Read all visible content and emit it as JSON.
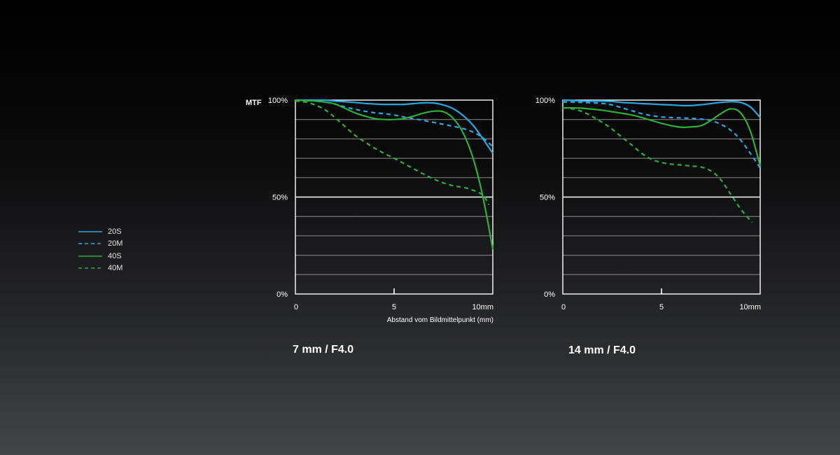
{
  "legend": {
    "items": [
      {
        "label": "20S",
        "color": "#29a8e0",
        "dashed": false
      },
      {
        "label": "20M",
        "color": "#29a8e0",
        "dashed": true
      },
      {
        "label": "40S",
        "color": "#2fae3a",
        "dashed": false
      },
      {
        "label": "40M",
        "color": "#2fae3a",
        "dashed": true
      }
    ]
  },
  "chart_data": [
    {
      "type": "line",
      "title": "7 mm / F4.0",
      "ylabel": "MTF",
      "xlabel": "Abstand vom Bildmittelpunkt  (mm)",
      "xlim": [
        0,
        10
      ],
      "ylim": [
        0,
        100
      ],
      "x_ticks": [
        {
          "value": 0,
          "label": "0"
        },
        {
          "value": 5,
          "label": "5"
        },
        {
          "value": 10,
          "label": "10mm"
        }
      ],
      "y_ticks": [
        {
          "value": 100,
          "label": "100%"
        },
        {
          "value": 50,
          "label": "50%"
        },
        {
          "value": 0,
          "label": "0%"
        }
      ],
      "grid": "horizontal every 10%",
      "series": [
        {
          "name": "20S",
          "color": "#29a8e0",
          "dashed": false,
          "x": [
            0,
            0.5,
            1,
            1.5,
            2,
            2.5,
            3,
            3.5,
            4,
            4.5,
            5,
            5.5,
            6,
            6.5,
            7,
            7.5,
            8,
            8.5,
            9,
            9.5,
            10
          ],
          "y": [
            100,
            100,
            100,
            100,
            99.5,
            99.2,
            98.8,
            98.3,
            98,
            97.8,
            97.8,
            97.8,
            98.2,
            98.6,
            98.5,
            97.5,
            95.5,
            92,
            87,
            80,
            72.5
          ]
        },
        {
          "name": "20M",
          "color": "#29a8e0",
          "dashed": true,
          "x": [
            0,
            0.5,
            1,
            1.5,
            2,
            2.5,
            3,
            3.5,
            4,
            4.5,
            5,
            5.5,
            6,
            6.5,
            7,
            7.5,
            8,
            8.5,
            9,
            9.5,
            10
          ],
          "y": [
            100,
            100,
            99.8,
            99,
            98,
            96.5,
            95.3,
            94.3,
            93.5,
            93,
            92.3,
            91.3,
            90.4,
            89.5,
            88.5,
            87.5,
            86.5,
            85.3,
            83.5,
            80.5,
            76
          ]
        },
        {
          "name": "40S",
          "color": "#2fae3a",
          "dashed": false,
          "x": [
            0,
            0.5,
            1,
            1.5,
            2,
            2.5,
            3,
            3.5,
            4,
            4.5,
            5,
            5.5,
            6,
            6.5,
            7,
            7.5,
            8,
            8.5,
            9,
            9.5,
            10
          ],
          "y": [
            100,
            99.8,
            99.5,
            99,
            98,
            95.8,
            93.5,
            91.8,
            90.5,
            90,
            90,
            90.5,
            91.8,
            93.3,
            94.3,
            94,
            90.5,
            83,
            70,
            50,
            23
          ]
        },
        {
          "name": "40M",
          "color": "#2fae3a",
          "dashed": true,
          "x": [
            0,
            0.5,
            1,
            1.5,
            2,
            2.5,
            3,
            3.5,
            4,
            4.5,
            5,
            5.5,
            6,
            6.5,
            7,
            7.5,
            8,
            8.5,
            9,
            9.5,
            9.8
          ],
          "y": [
            99.5,
            99,
            97.5,
            95,
            91,
            86.5,
            82,
            78.5,
            75.3,
            72.5,
            70,
            67.3,
            64.5,
            61.8,
            59.3,
            57.3,
            55.8,
            55,
            53.5,
            51,
            46
          ]
        }
      ]
    },
    {
      "type": "line",
      "title": "14 mm / F4.0",
      "ylabel": "",
      "xlabel": "",
      "xlim": [
        0,
        10
      ],
      "ylim": [
        0,
        100
      ],
      "x_ticks": [
        {
          "value": 0,
          "label": "0"
        },
        {
          "value": 5,
          "label": "5"
        },
        {
          "value": 10,
          "label": "10mm"
        }
      ],
      "y_ticks": [
        {
          "value": 100,
          "label": "100%"
        },
        {
          "value": 50,
          "label": "50%"
        },
        {
          "value": 0,
          "label": "0%"
        }
      ],
      "grid": "horizontal every 10%",
      "series": [
        {
          "name": "20S",
          "color": "#29a8e0",
          "dashed": false,
          "x": [
            0,
            0.5,
            1,
            1.5,
            2,
            2.5,
            3,
            3.5,
            4,
            4.5,
            5,
            5.5,
            6,
            6.5,
            7,
            7.5,
            8,
            8.5,
            9,
            9.5,
            10
          ],
          "y": [
            100,
            99.8,
            99.5,
            99.5,
            99.5,
            99.3,
            98.8,
            98.5,
            98.2,
            98,
            97.7,
            97.5,
            97.2,
            97.2,
            97.6,
            98.2,
            98.8,
            99.2,
            98.8,
            96.5,
            91
          ]
        },
        {
          "name": "20M",
          "color": "#29a8e0",
          "dashed": true,
          "x": [
            0,
            0.5,
            1,
            1.5,
            2,
            2.5,
            3,
            3.5,
            4,
            4.5,
            5,
            5.5,
            6,
            6.5,
            7,
            7.5,
            8,
            8.5,
            9,
            9.5,
            10
          ],
          "y": [
            99,
            99,
            98.8,
            98.6,
            98.3,
            97.5,
            96,
            94.5,
            93,
            92,
            91.3,
            91,
            90.8,
            90.6,
            90.2,
            89.5,
            87.5,
            84.5,
            79.5,
            72.5,
            65
          ]
        },
        {
          "name": "40S",
          "color": "#2fae3a",
          "dashed": false,
          "x": [
            0,
            0.5,
            1,
            1.5,
            2,
            2.5,
            3,
            3.5,
            4,
            4.5,
            5,
            5.5,
            6,
            6.5,
            7,
            7.5,
            8,
            8.5,
            9,
            9.5,
            10
          ],
          "y": [
            96,
            96,
            95.8,
            95.3,
            94.8,
            94,
            93.2,
            92.3,
            91,
            89.5,
            88,
            86.8,
            86,
            86.2,
            86.8,
            89.5,
            93,
            95.5,
            93.5,
            84,
            66
          ]
        },
        {
          "name": "40M",
          "color": "#2fae3a",
          "dashed": true,
          "x": [
            0,
            0.5,
            1,
            1.5,
            2,
            2.5,
            3,
            3.5,
            4,
            4.5,
            5,
            5.5,
            6,
            6.5,
            7,
            7.5,
            8,
            8.5,
            9,
            9.5,
            9.6
          ],
          "y": [
            96,
            95.5,
            94,
            91.5,
            88.5,
            85,
            80.8,
            76.8,
            72.5,
            69.5,
            67.8,
            67,
            66.5,
            66,
            65.5,
            63.5,
            59,
            51.5,
            44,
            38,
            37
          ]
        }
      ]
    }
  ]
}
